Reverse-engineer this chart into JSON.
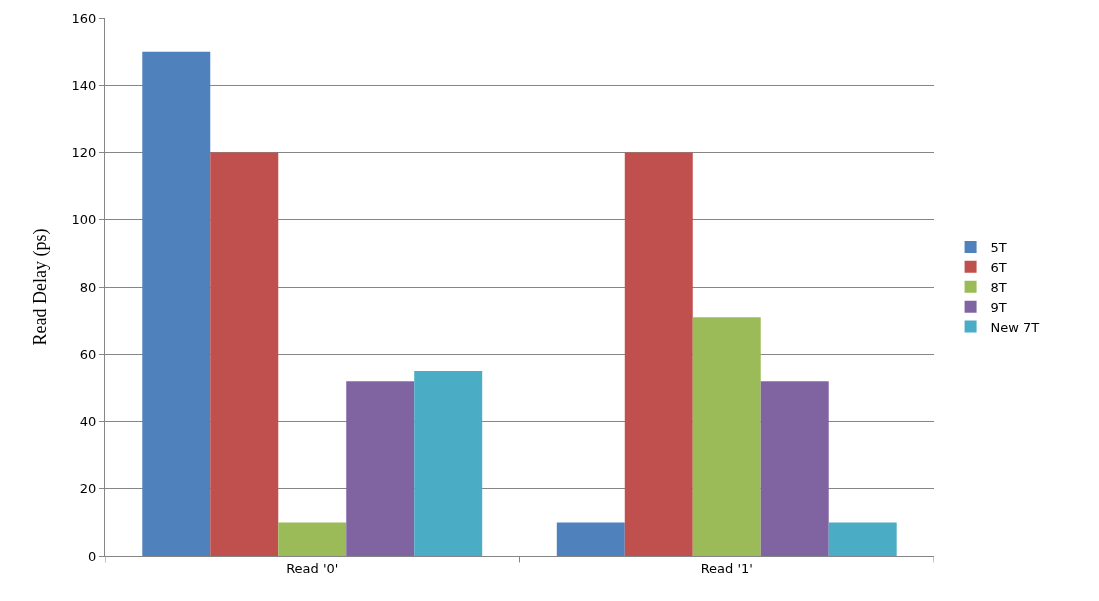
{
  "chart_data": {
    "type": "bar",
    "ylabel": "Read Delay (ps)",
    "categories": [
      "Read '0'",
      "Read '1'"
    ],
    "series": [
      {
        "name": "5T",
        "color": "#4f81bd",
        "values": [
          150,
          10
        ]
      },
      {
        "name": "6T",
        "color": "#c0504d",
        "values": [
          120,
          120
        ]
      },
      {
        "name": "8T",
        "color": "#9bbb59",
        "values": [
          10,
          71
        ]
      },
      {
        "name": "9T",
        "color": "#8064a2",
        "values": [
          52,
          52
        ]
      },
      {
        "name": "New 7T",
        "color": "#4bacc6",
        "values": [
          55,
          10
        ]
      }
    ],
    "ylim": [
      0,
      160
    ],
    "yticks": [
      0,
      20,
      40,
      60,
      80,
      100,
      120,
      140,
      160
    ],
    "grid": "y",
    "legend": "right"
  }
}
